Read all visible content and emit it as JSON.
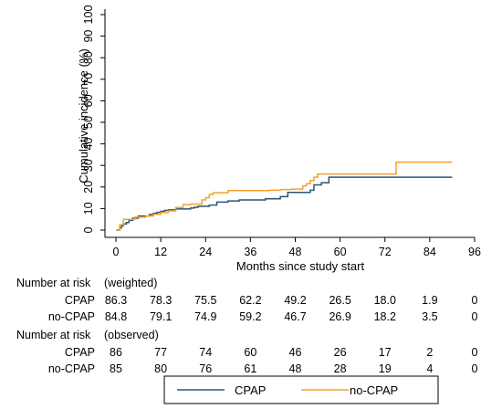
{
  "chart_data": {
    "type": "line",
    "xlabel": "Months since study start",
    "ylabel": "Cumulative incidence (%)",
    "xlim": [
      0,
      96
    ],
    "ylim": [
      0,
      100
    ],
    "xticks": [
      0,
      12,
      24,
      36,
      48,
      60,
      72,
      84,
      96
    ],
    "yticks": [
      0,
      10,
      20,
      30,
      40,
      50,
      60,
      70,
      80,
      90,
      100
    ],
    "grid": false,
    "legend_position": "bottom",
    "series": [
      {
        "name": "CPAP",
        "color": "#2b5575",
        "x": [
          0,
          1,
          1.5,
          2,
          2.8,
          3.5,
          4.5,
          6,
          9,
          10,
          11,
          12,
          13,
          14,
          16,
          20,
          21,
          22,
          25,
          27,
          30,
          33,
          40,
          44,
          46,
          52,
          53,
          55,
          57,
          62,
          90
        ],
        "y": [
          0,
          1,
          2,
          2.8,
          3.5,
          4.5,
          5.5,
          6.5,
          7.2,
          7.8,
          8.2,
          8.7,
          9.1,
          9.4,
          9.8,
          10.2,
          10.6,
          11,
          11.6,
          13,
          13.5,
          14,
          14.5,
          15.5,
          17.5,
          18.5,
          21,
          22,
          24.5,
          24.5,
          24.5
        ]
      },
      {
        "name": "no-CPAP",
        "color": "#f5a12b",
        "x": [
          0,
          1,
          2,
          5,
          8,
          10,
          12,
          14,
          16,
          18,
          20,
          23,
          24,
          25,
          26,
          30,
          41,
          44,
          47,
          50,
          51,
          52,
          53,
          54,
          57,
          58,
          74,
          75,
          90
        ],
        "y": [
          0,
          2.5,
          5,
          6,
          6.5,
          7.3,
          8.1,
          8.9,
          10.5,
          11.8,
          12,
          14,
          15,
          16.5,
          17.3,
          18.3,
          18.5,
          18.8,
          19,
          20.5,
          21.5,
          23,
          24.5,
          26,
          26,
          26,
          26,
          31.5,
          31.5
        ]
      }
    ],
    "risk_table": {
      "times": [
        0,
        12,
        24,
        36,
        48,
        60,
        72,
        84,
        96
      ],
      "sections": [
        {
          "title": "Number at risk",
          "note": "(weighted)",
          "rows": [
            {
              "label": "CPAP",
              "values": [
                "86.3",
                "78.3",
                "75.5",
                "62.2",
                "49.2",
                "26.5",
                "18.0",
                "1.9",
                "0"
              ]
            },
            {
              "label": "no-CPAP",
              "values": [
                "84.8",
                "79.1",
                "74.9",
                "59.2",
                "46.7",
                "26.9",
                "18.2",
                "3.5",
                "0"
              ]
            }
          ]
        },
        {
          "title": "Number at risk",
          "note": "(observed)",
          "rows": [
            {
              "label": "CPAP",
              "values": [
                "86",
                "77",
                "74",
                "60",
                "46",
                "26",
                "17",
                "2",
                "0"
              ]
            },
            {
              "label": "no-CPAP",
              "values": [
                "85",
                "80",
                "76",
                "61",
                "48",
                "28",
                "19",
                "4",
                "0"
              ]
            }
          ]
        }
      ]
    }
  }
}
